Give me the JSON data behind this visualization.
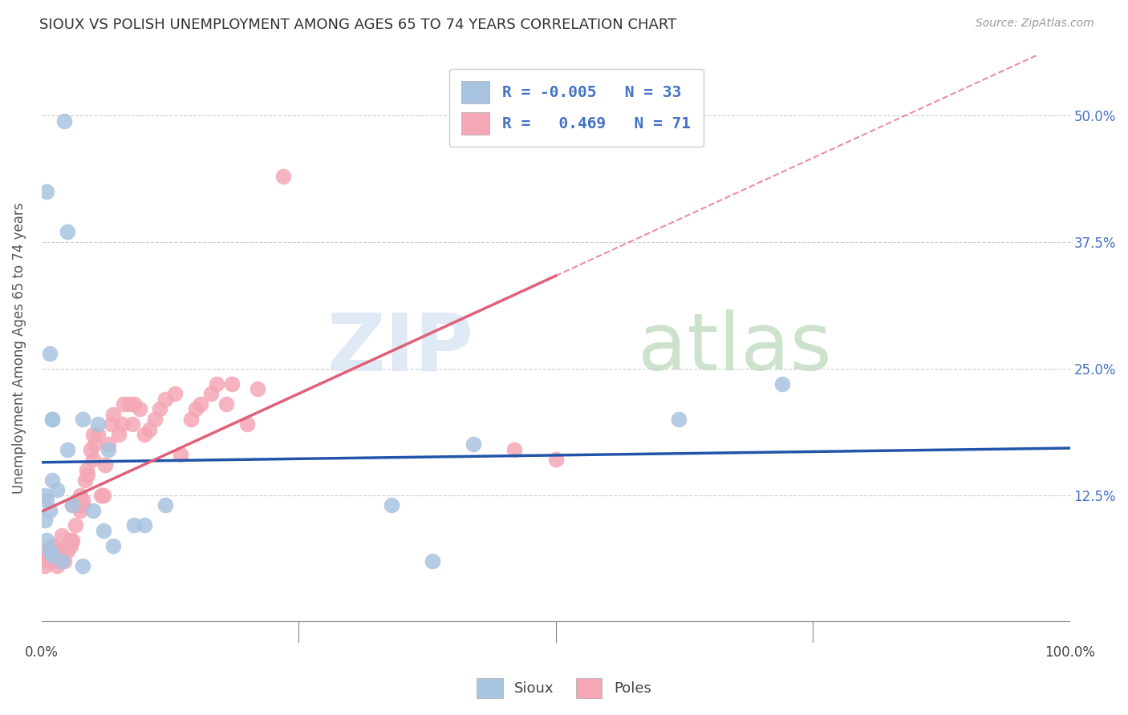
{
  "title": "SIOUX VS POLISH UNEMPLOYMENT AMONG AGES 65 TO 74 YEARS CORRELATION CHART",
  "source": "Source: ZipAtlas.com",
  "ylabel": "Unemployment Among Ages 65 to 74 years",
  "xlim": [
    0,
    1.0
  ],
  "ylim": [
    -0.02,
    0.56
  ],
  "plot_ylim": [
    0.0,
    0.55
  ],
  "legend_r_sioux": "-0.005",
  "legend_r_poles": "0.469",
  "legend_n_sioux": "33",
  "legend_n_poles": "71",
  "sioux_color": "#a8c4e0",
  "poles_color": "#f4a7b5",
  "sioux_line_color": "#2255aa",
  "poles_line_color": "#e0607a",
  "ytick_positions": [
    0.0,
    0.125,
    0.25,
    0.375,
    0.5
  ],
  "sioux_x": [
    0.022,
    0.008,
    0.025,
    0.005,
    0.003,
    0.005,
    0.008,
    0.01,
    0.008,
    0.003,
    0.01,
    0.015,
    0.01,
    0.02,
    0.025,
    0.03,
    0.04,
    0.04,
    0.055,
    0.06,
    0.065,
    0.09,
    0.1,
    0.12,
    0.34,
    0.38,
    0.42,
    0.62,
    0.72,
    0.005,
    0.01,
    0.05,
    0.07
  ],
  "sioux_y": [
    0.495,
    0.265,
    0.385,
    0.12,
    0.1,
    0.08,
    0.07,
    0.065,
    0.11,
    0.125,
    0.14,
    0.13,
    0.2,
    0.06,
    0.17,
    0.115,
    0.2,
    0.055,
    0.195,
    0.09,
    0.17,
    0.095,
    0.095,
    0.115,
    0.115,
    0.06,
    0.175,
    0.2,
    0.235,
    0.425,
    0.2,
    0.11,
    0.075
  ],
  "poles_x": [
    0.003,
    0.005,
    0.005,
    0.006,
    0.008,
    0.008,
    0.01,
    0.01,
    0.011,
    0.012,
    0.013,
    0.015,
    0.015,
    0.015,
    0.018,
    0.019,
    0.02,
    0.022,
    0.025,
    0.025,
    0.028,
    0.028,
    0.03,
    0.03,
    0.033,
    0.035,
    0.035,
    0.038,
    0.038,
    0.04,
    0.04,
    0.042,
    0.044,
    0.045,
    0.048,
    0.05,
    0.05,
    0.052,
    0.055,
    0.058,
    0.06,
    0.062,
    0.065,
    0.068,
    0.07,
    0.075,
    0.078,
    0.08,
    0.085,
    0.088,
    0.09,
    0.095,
    0.1,
    0.105,
    0.11,
    0.115,
    0.12,
    0.13,
    0.135,
    0.145,
    0.15,
    0.155,
    0.165,
    0.17,
    0.18,
    0.185,
    0.2,
    0.21,
    0.235,
    0.46,
    0.5
  ],
  "poles_y": [
    0.055,
    0.06,
    0.065,
    0.07,
    0.065,
    0.06,
    0.06,
    0.065,
    0.075,
    0.07,
    0.065,
    0.055,
    0.06,
    0.065,
    0.065,
    0.07,
    0.085,
    0.06,
    0.07,
    0.075,
    0.075,
    0.08,
    0.08,
    0.115,
    0.095,
    0.12,
    0.115,
    0.11,
    0.125,
    0.115,
    0.12,
    0.14,
    0.15,
    0.145,
    0.17,
    0.16,
    0.185,
    0.175,
    0.185,
    0.125,
    0.125,
    0.155,
    0.175,
    0.195,
    0.205,
    0.185,
    0.195,
    0.215,
    0.215,
    0.195,
    0.215,
    0.21,
    0.185,
    0.19,
    0.2,
    0.21,
    0.22,
    0.225,
    0.165,
    0.2,
    0.21,
    0.215,
    0.225,
    0.235,
    0.215,
    0.235,
    0.195,
    0.23,
    0.44,
    0.17,
    0.16
  ]
}
